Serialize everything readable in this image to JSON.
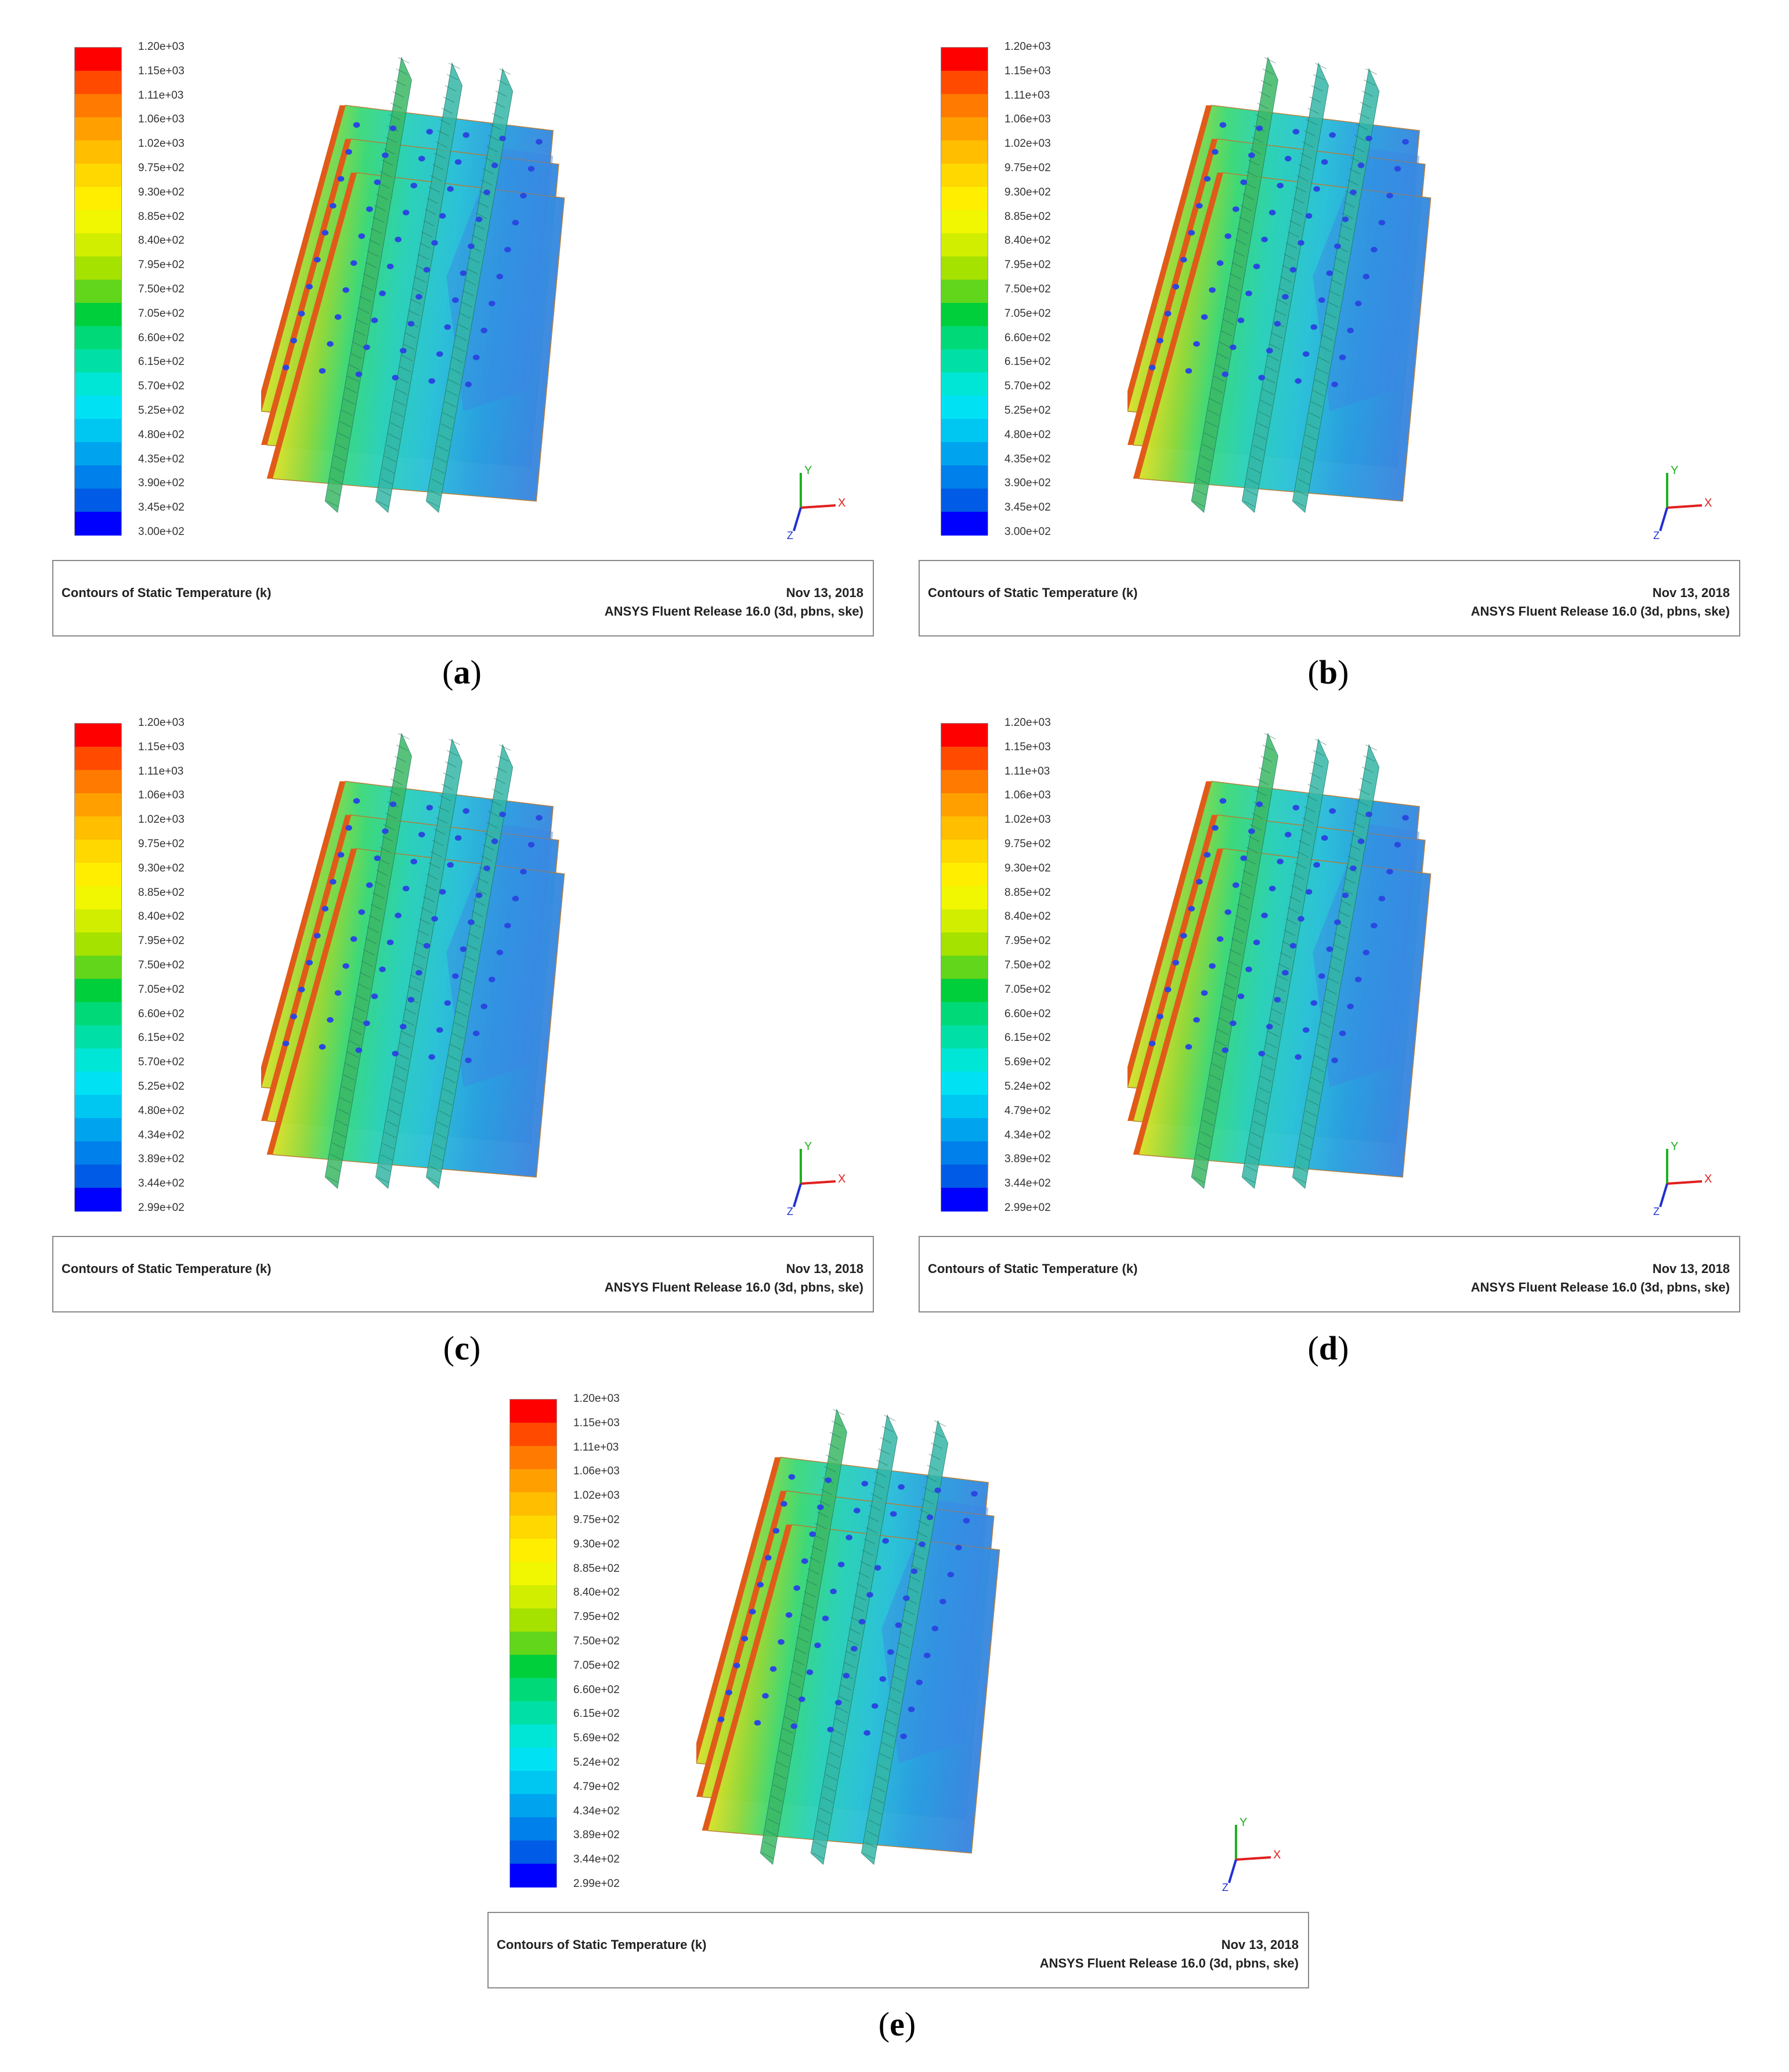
{
  "legend_colors": [
    "#ff0000",
    "#ff4a00",
    "#ff7a00",
    "#ffa000",
    "#ffbe00",
    "#ffd800",
    "#ffee00",
    "#f0f700",
    "#d2ee00",
    "#a6e200",
    "#62d61a",
    "#00cf3c",
    "#00d978",
    "#00e0a6",
    "#00e6d6",
    "#00e2f4",
    "#00c6f2",
    "#00a4ee",
    "#0080ea",
    "#005ce6",
    "#0000ff"
  ],
  "panels": [
    {
      "id": "a",
      "caption_letter": "a",
      "legend_labels": [
        "1.20e+03",
        "1.15e+03",
        "1.11e+03",
        "1.06e+03",
        "1.02e+03",
        "9.75e+02",
        "9.30e+02",
        "8.85e+02",
        "8.40e+02",
        "7.95e+02",
        "7.50e+02",
        "7.05e+02",
        "6.60e+02",
        "6.15e+02",
        "5.70e+02",
        "5.25e+02",
        "4.80e+02",
        "4.35e+02",
        "3.90e+02",
        "3.45e+02",
        "3.00e+02"
      ],
      "footer_title": "Contours of Static Temperature (k)",
      "footer_date": "Nov 13, 2018",
      "footer_release": "ANSYS Fluent Release 16.0 (3d, pbns, ske)"
    },
    {
      "id": "b",
      "caption_letter": "b",
      "legend_labels": [
        "1.20e+03",
        "1.15e+03",
        "1.11e+03",
        "1.06e+03",
        "1.02e+03",
        "9.75e+02",
        "9.30e+02",
        "8.85e+02",
        "8.40e+02",
        "7.95e+02",
        "7.50e+02",
        "7.05e+02",
        "6.60e+02",
        "6.15e+02",
        "5.70e+02",
        "5.25e+02",
        "4.80e+02",
        "4.35e+02",
        "3.90e+02",
        "3.45e+02",
        "3.00e+02"
      ],
      "footer_title": "Contours of Static Temperature (k)",
      "footer_date": "Nov 13, 2018",
      "footer_release": "ANSYS Fluent Release 16.0 (3d, pbns, ske)"
    },
    {
      "id": "c",
      "caption_letter": "c",
      "legend_labels": [
        "1.20e+03",
        "1.15e+03",
        "1.11e+03",
        "1.06e+03",
        "1.02e+03",
        "9.75e+02",
        "9.30e+02",
        "8.85e+02",
        "8.40e+02",
        "7.95e+02",
        "7.50e+02",
        "7.05e+02",
        "6.60e+02",
        "6.15e+02",
        "5.70e+02",
        "5.25e+02",
        "4.80e+02",
        "4.34e+02",
        "3.89e+02",
        "3.44e+02",
        "2.99e+02"
      ],
      "footer_title": "Contours of Static Temperature (k)",
      "footer_date": "Nov 13, 2018",
      "footer_release": "ANSYS Fluent Release 16.0 (3d, pbns, ske)"
    },
    {
      "id": "d",
      "caption_letter": "d",
      "legend_labels": [
        "1.20e+03",
        "1.15e+03",
        "1.11e+03",
        "1.06e+03",
        "1.02e+03",
        "9.75e+02",
        "9.30e+02",
        "8.85e+02",
        "8.40e+02",
        "7.95e+02",
        "7.50e+02",
        "7.05e+02",
        "6.60e+02",
        "6.15e+02",
        "5.69e+02",
        "5.24e+02",
        "4.79e+02",
        "4.34e+02",
        "3.89e+02",
        "3.44e+02",
        "2.99e+02"
      ],
      "footer_title": "Contours of Static Temperature (k)",
      "footer_date": "Nov 13, 2018",
      "footer_release": "ANSYS Fluent Release 16.0 (3d, pbns, ske)"
    },
    {
      "id": "e",
      "caption_letter": "e",
      "legend_labels": [
        "1.20e+03",
        "1.15e+03",
        "1.11e+03",
        "1.06e+03",
        "1.02e+03",
        "9.75e+02",
        "9.30e+02",
        "8.85e+02",
        "8.40e+02",
        "7.95e+02",
        "7.50e+02",
        "7.05e+02",
        "6.60e+02",
        "6.15e+02",
        "5.69e+02",
        "5.24e+02",
        "4.79e+02",
        "4.34e+02",
        "3.89e+02",
        "3.44e+02",
        "2.99e+02"
      ],
      "footer_title": "Contours of Static Temperature (k)",
      "footer_date": "Nov 13, 2018",
      "footer_release": "ANSYS Fluent Release 16.0 (3d, pbns, ske)"
    }
  ],
  "axis_labels": {
    "x": "X",
    "y": "Y",
    "z": "Z"
  }
}
